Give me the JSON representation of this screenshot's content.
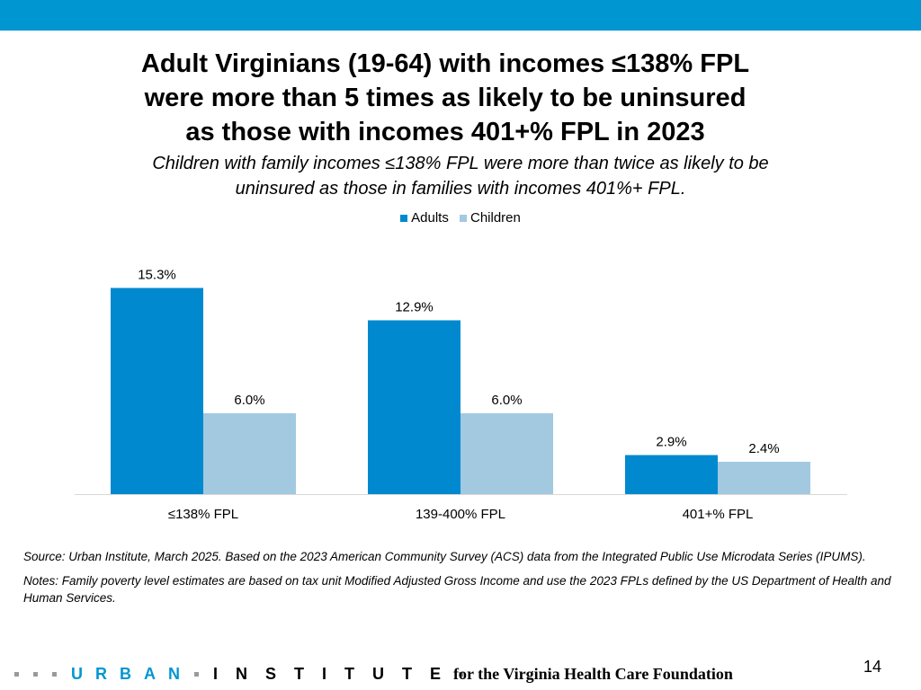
{
  "title_lines": [
    "Adult Virginians (19-64) with incomes ≤138% FPL",
    "were more than 5 times as likely to be uninsured",
    "as those with incomes 401+% FPL in 2023"
  ],
  "subtitle_lines": [
    "Children with family incomes ≤138% FPL were more than twice as likely to be",
    "uninsured as those in families with incomes 401%+ FPL."
  ],
  "colors": {
    "accent": "#0096d2",
    "adults": "#0089cf",
    "children": "#a2c9e0",
    "baseline": "#d9d9d9"
  },
  "chart_data": {
    "type": "bar",
    "categories": [
      "≤138% FPL",
      "139-400% FPL",
      "401+% FPL"
    ],
    "series": [
      {
        "name": "Adults",
        "values": [
          15.3,
          12.9,
          2.9
        ],
        "labels": [
          "15.3%",
          "12.9%",
          "2.9%"
        ]
      },
      {
        "name": "Children",
        "values": [
          6.0,
          6.0,
          2.4
        ],
        "labels": [
          "6.0%",
          "6.0%",
          "2.4%"
        ]
      }
    ],
    "ylim": [
      0,
      17
    ],
    "legend_position": "top",
    "grid": false
  },
  "notes": {
    "source": "Source: Urban Institute, March 2025. Based on the 2023 American Community Survey (ACS) data from the Integrated Public Use Microdata Series (IPUMS).",
    "notes": "Notes: Family poverty level estimates are based on tax unit Modified Adjusted Gross Income and use the 2023 FPLs defined by the US Department of Health and Human Services."
  },
  "footer": {
    "logo_part1": "URBAN",
    "logo_part2": "INSTITUTE",
    "foundation": "for the Virginia Health Care Foundation",
    "page_number": "14"
  }
}
